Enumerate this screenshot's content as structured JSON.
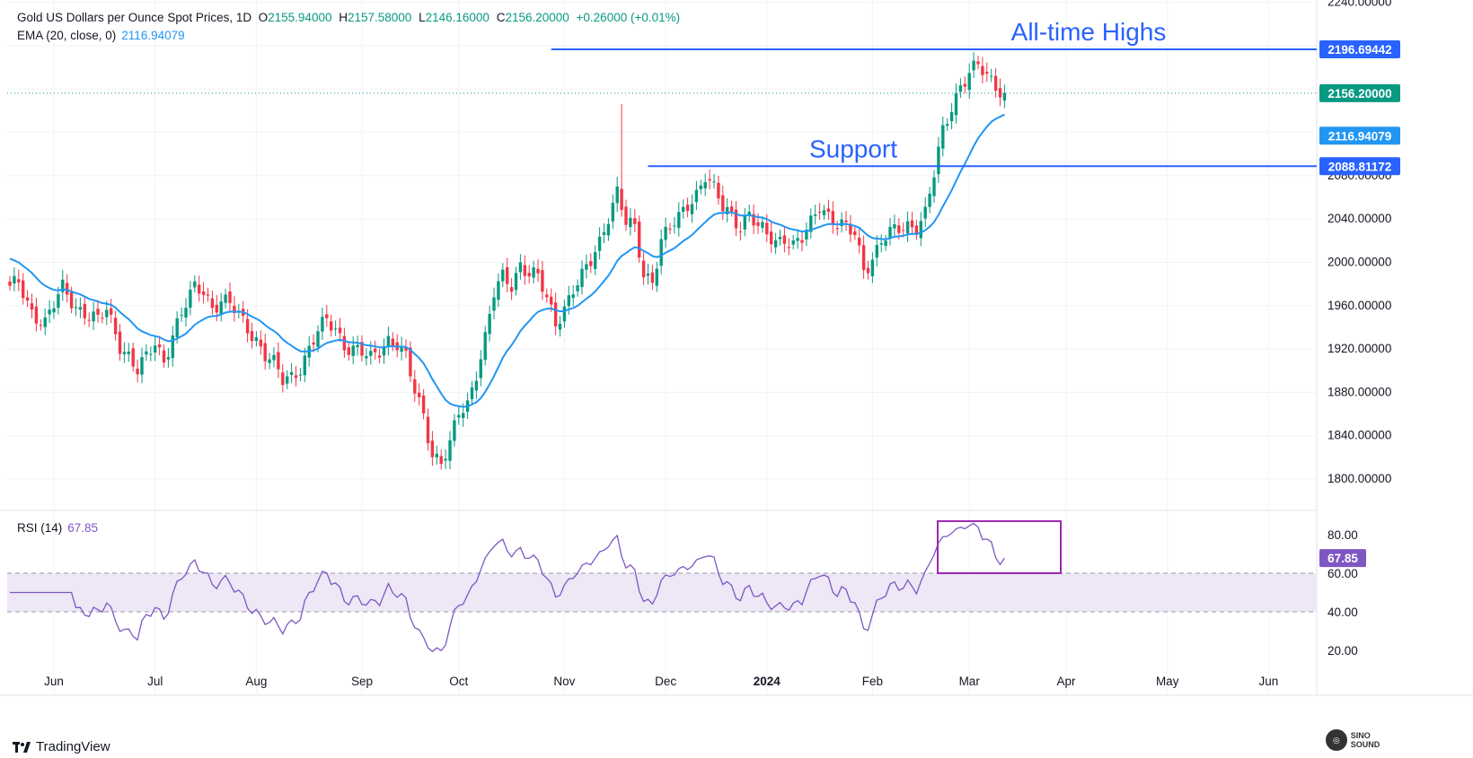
{
  "header": {
    "symbol": "Gold US Dollars per Ounce Spot Prices, 1D",
    "open_label": "O",
    "open": "2155.94000",
    "high_label": "H",
    "high": "2157.58000",
    "low_label": "L",
    "low": "2146.16000",
    "close_label": "C",
    "close": "2156.20000",
    "change": "+0.26000 (+0.01%)",
    "ema_label": "EMA (20, close, 0)",
    "ema_value": "2116.94079",
    "rsi_label": "RSI (14)",
    "rsi_value": "67.85"
  },
  "brand": {
    "name": "TradingView"
  },
  "watermark": {
    "text": "SINO SOUND"
  },
  "colors": {
    "up": "#089981",
    "down": "#f23645",
    "ema": "#2196f3",
    "hline": "#2962ff",
    "rsi": "#7e57c2",
    "rsi_band": "#ede7f6",
    "rsi_box": "#9c27b0",
    "close_tag": "#089981"
  },
  "chart_data": [
    {
      "type": "candlestick",
      "title": "Gold US Dollars per Ounce Spot Prices, 1D",
      "x_ticks": [
        "Jun",
        "Jul",
        "Aug",
        "Sep",
        "Oct",
        "Nov",
        "Dec",
        "2024",
        "Feb",
        "Mar",
        "Apr",
        "May",
        "Jun"
      ],
      "y_ticks": [
        "1800.00000",
        "1840.00000",
        "1880.00000",
        "1920.00000",
        "1960.00000",
        "2000.00000",
        "2040.00000",
        "2080.00000",
        "2240.00000"
      ],
      "ylim": [
        1772,
        2240
      ],
      "grid": true,
      "price_tags": [
        {
          "label": "2196.69442",
          "value": 2196.69,
          "kind": "hline"
        },
        {
          "label": "2156.20000",
          "value": 2156.2,
          "kind": "close"
        },
        {
          "label": "2116.94079",
          "value": 2116.94,
          "kind": "ema"
        },
        {
          "label": "2088.81172",
          "value": 2088.81,
          "kind": "hline"
        }
      ],
      "annotations": [
        {
          "text": "All-time Highs",
          "value": 2196.69,
          "from_bar": 123,
          "to_bar": 272
        },
        {
          "text": "Support",
          "value": 2088.81,
          "from_bar": 145,
          "to_bar": 272
        }
      ],
      "anchors": [
        [
          0,
          1975
        ],
        [
          2,
          1980
        ],
        [
          5,
          1955
        ],
        [
          8,
          1945
        ],
        [
          10,
          1960
        ],
        [
          12,
          1975
        ],
        [
          15,
          1960
        ],
        [
          17,
          1955
        ],
        [
          20,
          1945
        ],
        [
          22,
          1955
        ],
        [
          25,
          1925
        ],
        [
          27,
          1915
        ],
        [
          29,
          1900
        ],
        [
          31,
          1910
        ],
        [
          33,
          1925
        ],
        [
          35,
          1910
        ],
        [
          37,
          1935
        ],
        [
          40,
          1960
        ],
        [
          42,
          1975
        ],
        [
          44,
          1975
        ],
        [
          46,
          1960
        ],
        [
          48,
          1965
        ],
        [
          50,
          1960
        ],
        [
          52,
          1950
        ],
        [
          54,
          1940
        ],
        [
          56,
          1930
        ],
        [
          58,
          1915
        ],
        [
          60,
          1905
        ],
        [
          62,
          1890
        ],
        [
          64,
          1895
        ],
        [
          66,
          1905
        ],
        [
          68,
          1920
        ],
        [
          70,
          1935
        ],
        [
          72,
          1945
        ],
        [
          74,
          1940
        ],
        [
          76,
          1925
        ],
        [
          78,
          1920
        ],
        [
          80,
          1915
        ],
        [
          82,
          1910
        ],
        [
          84,
          1920
        ],
        [
          86,
          1930
        ],
        [
          88,
          1925
        ],
        [
          90,
          1910
        ],
        [
          92,
          1880
        ],
        [
          94,
          1860
        ],
        [
          96,
          1825
        ],
        [
          98,
          1815
        ],
        [
          100,
          1830
        ],
        [
          102,
          1860
        ],
        [
          104,
          1870
        ],
        [
          106,
          1900
        ],
        [
          108,
          1930
        ],
        [
          110,
          1970
        ],
        [
          112,
          1985
        ],
        [
          114,
          1980
        ],
        [
          116,
          2000
        ],
        [
          118,
          1990
        ],
        [
          120,
          1985
        ],
        [
          122,
          1965
        ],
        [
          124,
          1945
        ],
        [
          126,
          1960
        ],
        [
          128,
          1975
        ],
        [
          130,
          1985
        ],
        [
          132,
          2000
        ],
        [
          134,
          2020
        ],
        [
          136,
          2045
        ],
        [
          138,
          2065
        ],
        [
          140,
          2035
        ],
        [
          142,
          2030
        ],
        [
          144,
          1990
        ],
        [
          146,
          1985
        ],
        [
          148,
          2020
        ],
        [
          150,
          2030
        ],
        [
          152,
          2040
        ],
        [
          154,
          2055
        ],
        [
          156,
          2065
        ],
        [
          158,
          2080
        ],
        [
          160,
          2065
        ],
        [
          162,
          2050
        ],
        [
          164,
          2045
        ],
        [
          166,
          2035
        ],
        [
          168,
          2045
        ],
        [
          170,
          2030
        ],
        [
          172,
          2025
        ],
        [
          174,
          2020
        ],
        [
          176,
          2025
        ],
        [
          178,
          2015
        ],
        [
          180,
          2020
        ],
        [
          182,
          2035
        ],
        [
          184,
          2055
        ],
        [
          186,
          2045
        ],
        [
          188,
          2035
        ],
        [
          190,
          2030
        ],
        [
          192,
          2025
        ],
        [
          194,
          1995
        ],
        [
          196,
          2005
        ],
        [
          198,
          2020
        ],
        [
          200,
          2025
        ],
        [
          202,
          2030
        ],
        [
          204,
          2035
        ],
        [
          206,
          2035
        ],
        [
          208,
          2045
        ],
        [
          210,
          2080
        ],
        [
          212,
          2120
        ],
        [
          214,
          2145
        ],
        [
          216,
          2165
        ],
        [
          218,
          2175
        ],
        [
          220,
          2180
        ],
        [
          222,
          2170
        ],
        [
          224,
          2165
        ],
        [
          226,
          2156
        ]
      ],
      "bars_total": 227,
      "ema_period": 20,
      "spike": {
        "bar": 139,
        "high": 2146
      }
    },
    {
      "type": "line",
      "title": "RSI (14)",
      "y_ticks": [
        "80.00",
        "60.00",
        "40.00",
        "20.00"
      ],
      "ylim": [
        10,
        90
      ],
      "band": [
        40,
        60
      ],
      "last_value": "67.85",
      "highlight_box": {
        "from_bar": 215,
        "to_bar": 238,
        "from_value": 60,
        "to_value": 87
      }
    }
  ]
}
